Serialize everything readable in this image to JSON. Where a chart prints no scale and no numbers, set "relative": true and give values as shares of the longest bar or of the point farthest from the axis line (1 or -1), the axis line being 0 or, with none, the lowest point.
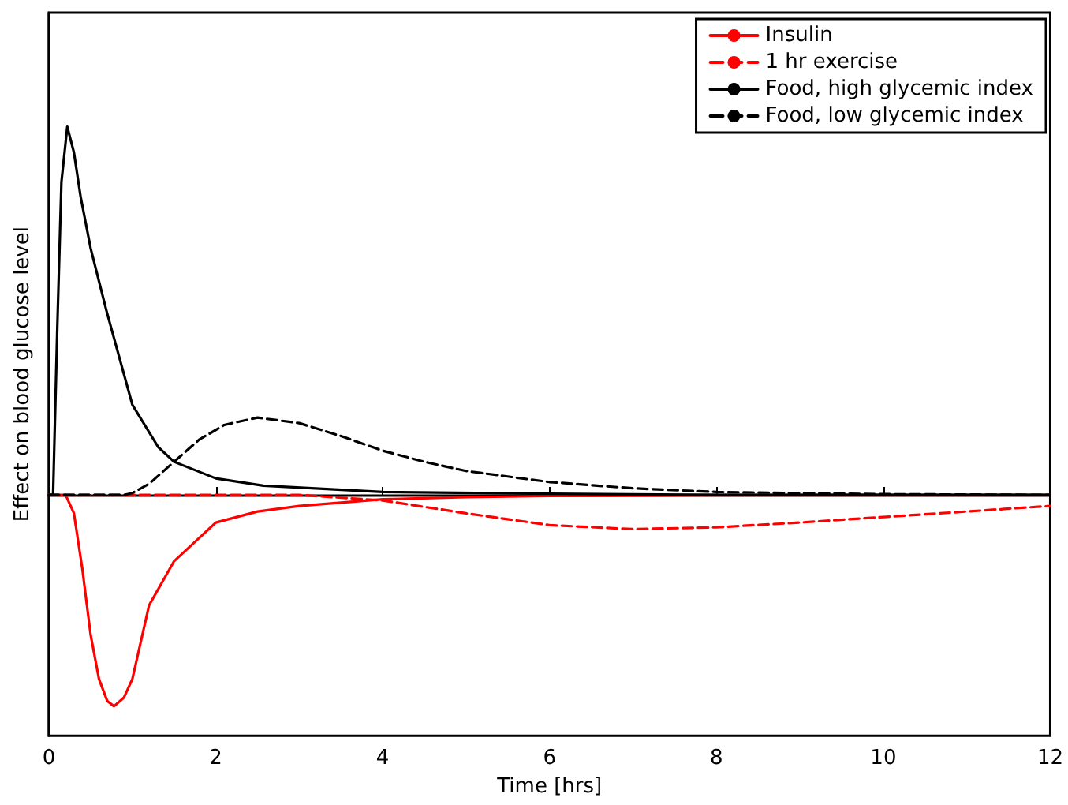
{
  "chart_data": {
    "type": "line",
    "relative": true,
    "xlabel": "Time [hrs]",
    "ylabel": "Effect on blood glucose level",
    "xlim": [
      0,
      12
    ],
    "xticks": [
      0,
      2,
      4,
      6,
      8,
      10,
      12
    ],
    "legend": "top right",
    "grid": false,
    "marker": "none",
    "series": [
      {
        "name": "Insulin",
        "color": "#ff0000",
        "line_style": "solid",
        "x": [
          0,
          0.2,
          0.3,
          0.4,
          0.5,
          0.6,
          0.7,
          0.78,
          0.9,
          1.0,
          1.2,
          1.5,
          2,
          2.5,
          3,
          4,
          5,
          6,
          8,
          12
        ],
        "values": [
          0,
          0,
          -0.05,
          -0.2,
          -0.38,
          -0.5,
          -0.56,
          -0.574,
          -0.55,
          -0.5,
          -0.3,
          -0.18,
          -0.075,
          -0.045,
          -0.03,
          -0.012,
          -0.006,
          -0.003,
          0,
          0
        ]
      },
      {
        "name": "1 hr exercise",
        "color": "#ff0000",
        "line_style": "dashed",
        "x": [
          0,
          3,
          4,
          5,
          6,
          7,
          8,
          9,
          10,
          11,
          12
        ],
        "values": [
          0,
          0,
          -0.015,
          -0.05,
          -0.082,
          -0.093,
          -0.088,
          -0.075,
          -0.06,
          -0.045,
          -0.03
        ]
      },
      {
        "name": "Food, high glycemic index",
        "color": "#000000",
        "line_style": "solid",
        "x": [
          0,
          0.05,
          0.1,
          0.15,
          0.22,
          0.3,
          0.38,
          0.5,
          0.69,
          1.0,
          1.31,
          1.5,
          2,
          2.57,
          4,
          6,
          8,
          12
        ],
        "values": [
          0,
          0,
          0.45,
          0.85,
          1,
          0.93,
          0.81,
          0.67,
          0.5,
          0.245,
          0.13,
          0.09,
          0.045,
          0.025,
          0.008,
          0.003,
          0,
          0
        ]
      },
      {
        "name": "Food, low glycemic index",
        "color": "#000000",
        "line_style": "dashed",
        "x": [
          0,
          0.9,
          1,
          1.2,
          1.5,
          1.8,
          2.1,
          2.5,
          3,
          3.5,
          4,
          4.5,
          5,
          6,
          7,
          8,
          10,
          12
        ],
        "values": [
          0,
          0,
          0.005,
          0.03,
          0.09,
          0.15,
          0.19,
          0.21,
          0.195,
          0.16,
          0.12,
          0.09,
          0.065,
          0.035,
          0.018,
          0.008,
          0.002,
          0
        ]
      }
    ]
  }
}
